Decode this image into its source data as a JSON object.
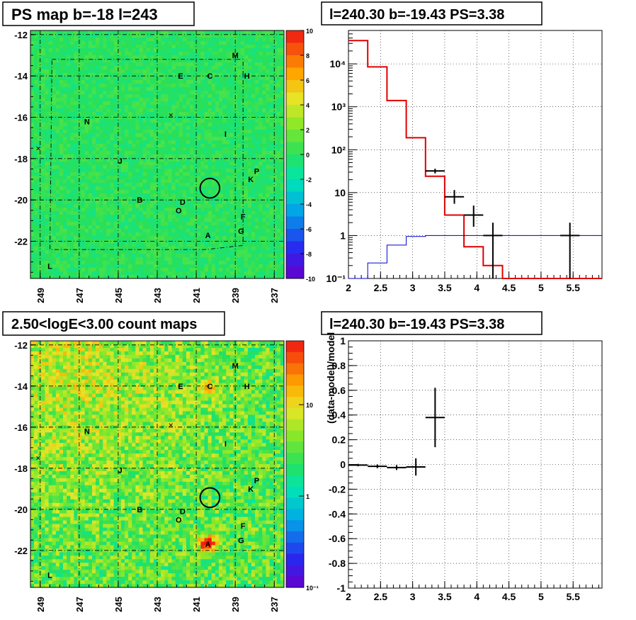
{
  "colors": {
    "map_green": "#2ee055",
    "red_model": "#e00000",
    "blue_model": "#0000cc",
    "data_black": "#000000"
  },
  "panels": {
    "ps_map": {
      "title": "PS map b=-18 l=243",
      "colorbar_ticks": [
        "10",
        "8",
        "6",
        "4",
        "2",
        "0",
        "-2",
        "-4",
        "-6",
        "-8",
        "-10"
      ]
    },
    "count_map": {
      "title": "2.50<logE<3.00 count maps",
      "colorbar_ticks": [
        "10",
        "1",
        "10⁻¹"
      ]
    },
    "map_axes": {
      "x_ticks": [
        "249",
        "247",
        "245",
        "243",
        "241",
        "239",
        "237"
      ],
      "y_ticks": [
        "-12",
        "-14",
        "-16",
        "-18",
        "-20",
        "-22"
      ]
    },
    "sources": [
      "M",
      "E",
      "C",
      "H",
      "N",
      "I",
      "J",
      "P",
      "K",
      "B",
      "D",
      "O",
      "F",
      "G",
      "A",
      "L"
    ]
  },
  "chart_data": [
    {
      "type": "heatmap",
      "title": "PS map b=-18 l=243",
      "x_range": [
        249.5,
        236.5
      ],
      "y_range": [
        -23.8,
        -11.8
      ],
      "color_range": [
        -10,
        10
      ],
      "markers": [
        {
          "label": "M",
          "l": 239.0,
          "b": -13.0
        },
        {
          "label": "E",
          "l": 241.8,
          "b": -14.0
        },
        {
          "label": "C",
          "l": 240.3,
          "b": -14.0
        },
        {
          "label": "H",
          "l": 238.4,
          "b": -14.0
        },
        {
          "label": "N",
          "l": 246.6,
          "b": -16.2
        },
        {
          "label": "I",
          "l": 239.5,
          "b": -16.8
        },
        {
          "label": "J",
          "l": 244.9,
          "b": -18.1
        },
        {
          "label": "P",
          "l": 237.9,
          "b": -18.6
        },
        {
          "label": "K",
          "l": 238.2,
          "b": -19.0
        },
        {
          "label": "B",
          "l": 243.9,
          "b": -20.0
        },
        {
          "label": "D",
          "l": 241.7,
          "b": -20.1
        },
        {
          "label": "O",
          "l": 241.9,
          "b": -20.5
        },
        {
          "label": "F",
          "l": 238.6,
          "b": -20.8
        },
        {
          "label": "G",
          "l": 238.7,
          "b": -21.5
        },
        {
          "label": "A",
          "l": 240.4,
          "b": -21.7
        },
        {
          "label": "L",
          "l": 248.5,
          "b": -23.2
        }
      ],
      "circle": {
        "l": 240.3,
        "b": -19.43,
        "r_deg": 0.5
      }
    },
    {
      "type": "line",
      "title": "l=240.30 b=-19.43 PS=3.38",
      "yscale": "log",
      "xlim": [
        2,
        5.95
      ],
      "ylim": [
        0.1,
        60000
      ],
      "x_ticks": [
        "2",
        "2.5",
        "3",
        "3.5",
        "4",
        "4.5",
        "5",
        "5.5"
      ],
      "y_ticks": [
        "10⁻¹",
        "1",
        "10",
        "10²",
        "10³",
        "10⁴"
      ],
      "series": [
        {
          "kind": "step",
          "color": "#e00000",
          "edges": [
            2.0,
            2.3,
            2.6,
            2.9,
            3.2,
            3.5,
            3.8,
            4.1,
            4.4,
            4.7,
            5.0,
            5.3,
            5.6,
            5.95
          ],
          "values": [
            35000,
            8500,
            1400,
            190,
            24,
            3,
            0.55,
            0.2,
            0.09,
            0.09,
            0.09,
            0.09,
            0.09
          ]
        },
        {
          "kind": "step",
          "color": "#0000cc",
          "edges": [
            2.0,
            2.3,
            2.6,
            2.9,
            3.2,
            3.5,
            3.8,
            4.1,
            4.4,
            4.7,
            5.0,
            5.3,
            5.6,
            5.95
          ],
          "values": [
            0.09,
            0.23,
            0.6,
            0.95,
            1.0,
            1.0,
            1.0,
            1.0,
            1.0,
            1.0,
            1.0,
            1.0,
            1.0
          ]
        },
        {
          "kind": "points",
          "color": "#000000",
          "x": [
            3.35,
            3.65,
            3.95,
            4.25,
            5.45
          ],
          "y": [
            32,
            8,
            3,
            1,
            1
          ],
          "xerr": [
            0.15,
            0.15,
            0.15,
            0.15,
            0.15
          ],
          "ylo": [
            28,
            5.5,
            1.6,
            0.1,
            0.1
          ],
          "yhi": [
            36,
            11.5,
            5,
            2.0,
            2.0
          ]
        }
      ]
    },
    {
      "type": "heatmap",
      "title": "2.50<logE<3.00 count maps",
      "x_range": [
        249.5,
        236.5
      ],
      "y_range": [
        -23.8,
        -11.8
      ],
      "color_scale": "log",
      "color_range": [
        0.1,
        50
      ],
      "hotspots": [
        {
          "label": "A",
          "l": 240.4,
          "b": -21.7,
          "strength": 1.0
        },
        {
          "label": "C",
          "l": 240.3,
          "b": -14.0,
          "strength": 0.35
        }
      ]
    },
    {
      "type": "scatter",
      "title": "l=240.30 b=-19.43 PS=3.38",
      "ylabel": "(data-model)/model",
      "xlim": [
        2,
        5.95
      ],
      "ylim": [
        -1,
        1
      ],
      "x_ticks": [
        "2",
        "2.5",
        "3",
        "3.5",
        "4",
        "4.5",
        "5",
        "5.5"
      ],
      "y_ticks": [
        "1",
        "0.8",
        "0.6",
        "0.4",
        "0.2",
        "0",
        "-0.2",
        "-0.4",
        "-0.6",
        "-0.8",
        "-1"
      ],
      "points": {
        "x": [
          2.15,
          2.45,
          2.75,
          3.05,
          3.35
        ],
        "y": [
          -0.005,
          -0.015,
          -0.025,
          -0.02,
          0.38
        ],
        "xerr": [
          0.15,
          0.15,
          0.15,
          0.15,
          0.15
        ],
        "yerr": [
          0.01,
          0.015,
          0.02,
          0.07,
          0.24
        ]
      }
    }
  ]
}
